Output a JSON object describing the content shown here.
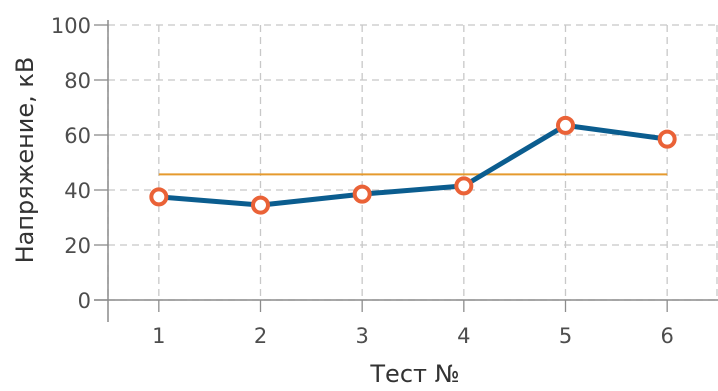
{
  "chart_data": {
    "type": "line",
    "title": "",
    "xlabel": "Тест №",
    "ylabel": "Напряжение, кВ",
    "x": [
      1,
      2,
      3,
      4,
      5,
      6
    ],
    "x_tick_labels": [
      "1",
      "2",
      "3",
      "4",
      "5",
      "6"
    ],
    "y_tick_labels": [
      "0",
      "20",
      "40",
      "60",
      "80",
      "100"
    ],
    "y_ticks": [
      0,
      20,
      40,
      60,
      80,
      100
    ],
    "xlim": [
      0.5,
      6.5
    ],
    "ylim": [
      0,
      100
    ],
    "grid": true,
    "legend": "none",
    "series": [
      {
        "values": [
          37.5,
          34.5,
          38.5,
          41.5,
          63.5,
          58.5
        ],
        "color": "#0b5d8f",
        "markers": "hollow-circle",
        "marker_color": "#ea6237"
      }
    ],
    "reference_line": {
      "value": 45.7,
      "x_range": [
        1,
        6
      ],
      "color": "#e59a2e"
    }
  }
}
